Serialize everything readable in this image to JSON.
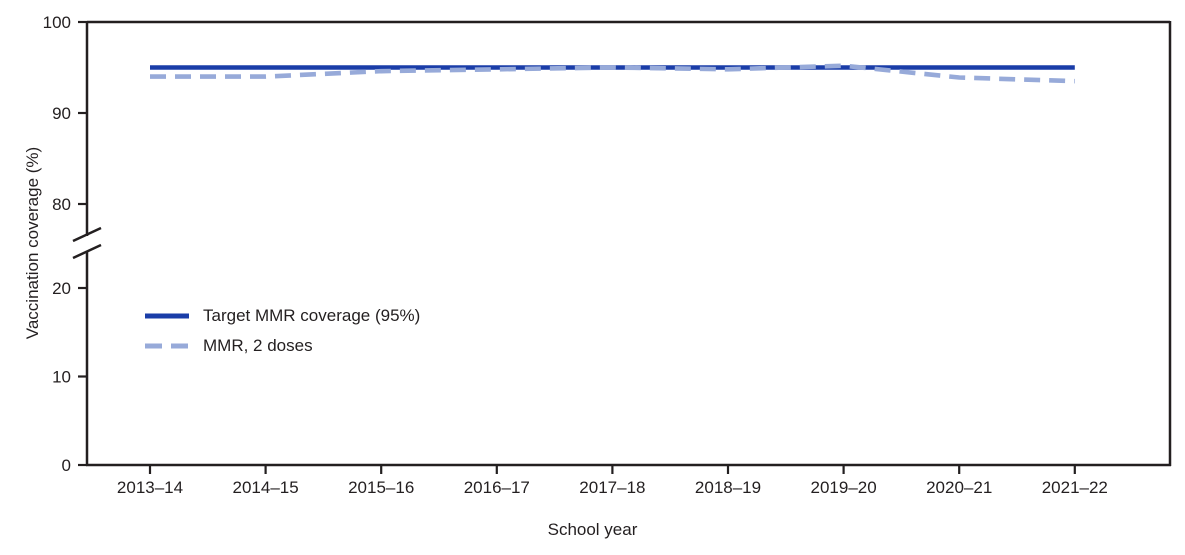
{
  "figure": {
    "background": "#ffffff",
    "text_color": "#231f20",
    "axis_color": "#231f20"
  },
  "chart_data": {
    "type": "line",
    "title": "",
    "xlabel": "School year",
    "ylabel": "Vaccination coverage (%)",
    "categories": [
      "2013–14",
      "2014–15",
      "2015–16",
      "2016–17",
      "2017–18",
      "2018–19",
      "2019–20",
      "2020–21",
      "2021–22"
    ],
    "series": [
      {
        "name": "Target MMR coverage (95%)",
        "style": "solid",
        "color": "#1a3da8",
        "values": [
          95,
          95,
          95,
          95,
          95,
          95,
          95,
          95,
          95
        ]
      },
      {
        "name": "MMR, 2 doses",
        "style": "dashed",
        "color": "#97aad9",
        "values": [
          94.0,
          94.0,
          94.6,
          94.8,
          95.0,
          94.8,
          95.2,
          93.9,
          93.5
        ]
      }
    ],
    "y_axis": {
      "broken": true,
      "top_ticks": [
        100,
        90,
        80
      ],
      "bottom_ticks": [
        20,
        10,
        0
      ],
      "ylim_top": [
        78,
        100
      ],
      "ylim_bottom": [
        0,
        26
      ]
    },
    "grid": false,
    "legend_position": "inside-upper-left-of-lower-panel"
  }
}
